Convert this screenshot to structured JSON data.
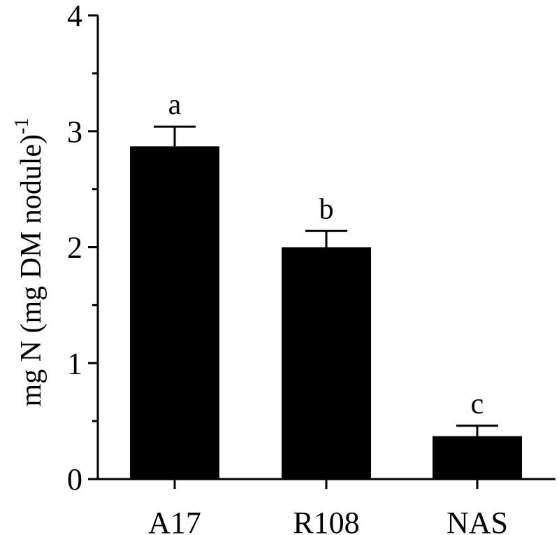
{
  "chart_data": {
    "type": "bar",
    "title": "",
    "xlabel": "",
    "ylabel": "mg N (mg DM nodule)",
    "ylabel_superscript": "-1",
    "categories": [
      "A17",
      "R108",
      "NAS"
    ],
    "values": [
      2.87,
      2.0,
      0.37
    ],
    "error_upper": [
      0.17,
      0.14,
      0.09
    ],
    "significance_labels": [
      "a",
      "b",
      "c"
    ],
    "ylim": [
      0,
      4
    ],
    "yticks": [
      0,
      1,
      2,
      3,
      4
    ],
    "grid": false,
    "bar_color": "#000000"
  }
}
